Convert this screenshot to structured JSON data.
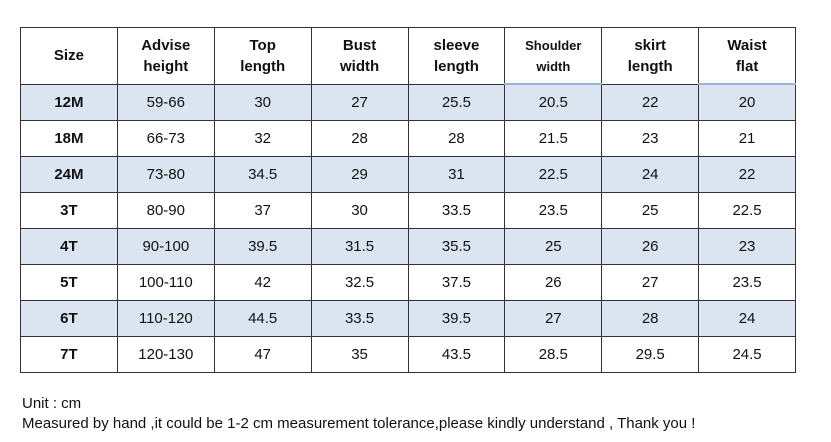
{
  "table": {
    "header": [
      [
        "Size"
      ],
      [
        "Advise",
        "height"
      ],
      [
        "Top",
        "length"
      ],
      [
        "Bust",
        "width"
      ],
      [
        "sleeve",
        "length"
      ],
      [
        "Shoulder",
        "width"
      ],
      [
        "skirt",
        "length"
      ],
      [
        "Waist",
        "flat"
      ]
    ],
    "rows": [
      [
        "12M",
        "59-66",
        "30",
        "27",
        "25.5",
        "20.5",
        "22",
        "20"
      ],
      [
        "18M",
        "66-73",
        "32",
        "28",
        "28",
        "21.5",
        "23",
        "21"
      ],
      [
        "24M",
        "73-80",
        "34.5",
        "29",
        "31",
        "22.5",
        "24",
        "22"
      ],
      [
        "3T",
        "80-90",
        "37",
        "30",
        "33.5",
        "23.5",
        "25",
        "22.5"
      ],
      [
        "4T",
        "90-100",
        "39.5",
        "31.5",
        "35.5",
        "25",
        "26",
        "23"
      ],
      [
        "5T",
        "100-110",
        "42",
        "32.5",
        "37.5",
        "26",
        "27",
        "23.5"
      ],
      [
        "6T",
        "110-120",
        "44.5",
        "33.5",
        "39.5",
        "27",
        "28",
        "24"
      ],
      [
        "7T",
        "120-130",
        "47",
        "35",
        "43.5",
        "28.5",
        "29.5",
        "24.5"
      ]
    ]
  },
  "notes": [
    "Unit : cm",
    "Measured by hand ,it could be 1-2 cm measurement tolerance,please kindly understand , Thank you !"
  ]
}
